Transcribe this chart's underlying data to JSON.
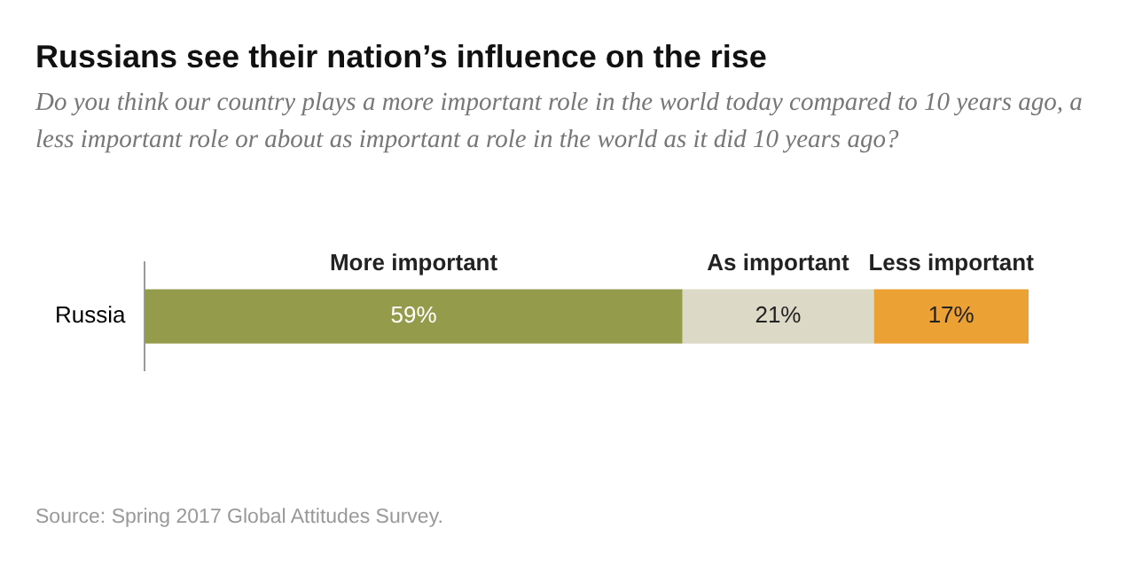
{
  "chart_data": {
    "type": "bar",
    "orientation": "horizontal",
    "stacked": true,
    "title": "Russians see their nation’s influence on the rise",
    "subtitle": "Do you think our country plays a more important role in the world today compared to 10 years ago, a less important role or about as important a role in the world as it did 10 years ago?",
    "categories": [
      "Russia"
    ],
    "series": [
      {
        "name": "More important",
        "color": "#949c4c",
        "values": [
          59
        ],
        "value_labels": [
          "59%"
        ]
      },
      {
        "name": "As important",
        "color": "#dcd9c6",
        "values": [
          21
        ],
        "value_labels": [
          "21%"
        ]
      },
      {
        "name": "Less important",
        "color": "#eca135",
        "values": [
          17
        ],
        "value_labels": [
          "17%"
        ]
      }
    ],
    "legend": false,
    "annotations": [
      "Source: Spring 2017 Global Attitudes Survey."
    ]
  }
}
